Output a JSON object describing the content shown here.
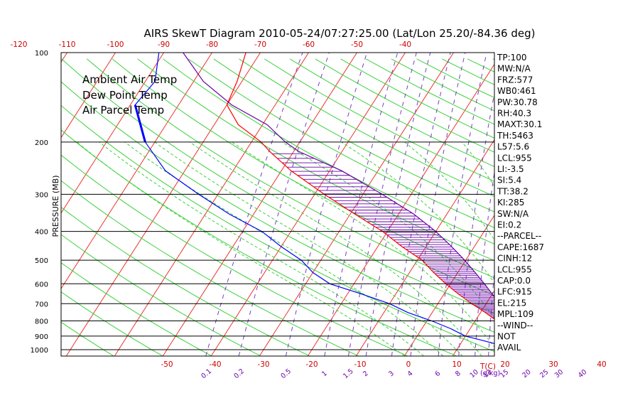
{
  "title": "AIRS SkewT Diagram 2010-05-24/07:27:25.00 (Lat/Lon 25.20/-84.36 deg)",
  "y_axis_label": "PRESSURE (MB)",
  "temp_axis_unit": "T(C)",
  "mixing_ratio_unit": "(g/kg)",
  "legend": [
    {
      "label": "Ambient Air Temp",
      "color": "#ff0000"
    },
    {
      "label": "Dew Point Temp",
      "color": "#0000ff"
    },
    {
      "label": "Air Parcel Temp",
      "color": "#6a00a8"
    }
  ],
  "indices": [
    "TP:100",
    "MW:N/A",
    "FRZ:577",
    "WB0:461",
    "PW:30.78",
    "RH:40.3",
    "MAXT:30.1",
    "TH:5463",
    "L57:5.6",
    "LCL:955",
    "LI:-3.5",
    "SI:5.4",
    "TT:38.2",
    "KI:285",
    "SW:N/A",
    "EI:0.2",
    "--PARCEL--",
    "CAPE:1687",
    "CINH:12",
    "LCL:955",
    "CAP:0.0",
    "LFC:915",
    "EL:215",
    "MPL:109",
    "--WIND--",
    "NOT",
    "AVAIL"
  ],
  "chart_data": {
    "type": "line",
    "title": "AIRS SkewT Diagram 2010-05-24/07:27:25.00 (Lat/Lon 25.20/-84.36 deg)",
    "ylabel": "PRESSURE (MB)",
    "y_scale": "log",
    "y_reversed": true,
    "ylim": [
      1000,
      100
    ],
    "pressure_ticks": [
      100,
      200,
      300,
      400,
      500,
      600,
      700,
      800,
      900,
      1000
    ],
    "top_temp_ticks": [
      -120,
      -110,
      -100,
      -90,
      -80,
      -70,
      -60,
      -50,
      -40
    ],
    "bottom_temp_ticks": [
      -50,
      -40,
      -30,
      -20,
      -10,
      0,
      10,
      20,
      30,
      40
    ],
    "mixing_ratio_ticks": [
      "0.1",
      "0.2",
      "0.5",
      "1",
      "1.5",
      "2",
      "3",
      "4",
      "6",
      "8",
      "10",
      "12",
      "15",
      "20",
      "25",
      "30",
      "40"
    ],
    "series": [
      {
        "name": "Ambient Air Temp",
        "color": "#ff0000",
        "points": [
          [
            1000,
            25
          ],
          [
            970,
            22
          ],
          [
            930,
            20.5
          ],
          [
            900,
            19
          ],
          [
            870,
            17.5
          ],
          [
            850,
            17
          ],
          [
            800,
            14.5
          ],
          [
            750,
            11
          ],
          [
            700,
            7
          ],
          [
            650,
            3
          ],
          [
            600,
            -1
          ],
          [
            550,
            -5
          ],
          [
            500,
            -9
          ],
          [
            450,
            -15
          ],
          [
            400,
            -21
          ],
          [
            350,
            -29
          ],
          [
            300,
            -38
          ],
          [
            250,
            -48
          ],
          [
            215,
            -55
          ],
          [
            200,
            -58
          ],
          [
            175,
            -65
          ],
          [
            150,
            -70
          ],
          [
            125,
            -71
          ],
          [
            100,
            -73
          ]
        ]
      },
      {
        "name": "Dew Point Temp",
        "color": "#0000ff",
        "points": [
          [
            1000,
            21
          ],
          [
            970,
            19
          ],
          [
            930,
            14
          ],
          [
            900,
            10
          ],
          [
            850,
            6
          ],
          [
            800,
            1
          ],
          [
            750,
            -5
          ],
          [
            700,
            -10
          ],
          [
            650,
            -17
          ],
          [
            600,
            -25
          ],
          [
            550,
            -30
          ],
          [
            500,
            -34
          ],
          [
            450,
            -40
          ],
          [
            400,
            -46
          ],
          [
            350,
            -55
          ],
          [
            300,
            -64
          ],
          [
            250,
            -74
          ],
          [
            200,
            -82
          ],
          [
            150,
            -89
          ],
          [
            125,
            -88
          ],
          [
            100,
            -91
          ]
        ]
      },
      {
        "name": "Air Parcel Temp",
        "color": "#6a00a8",
        "points": [
          [
            1000,
            25
          ],
          [
            955,
            21.5
          ],
          [
            915,
            21
          ],
          [
            850,
            19.3
          ],
          [
            800,
            17.5
          ],
          [
            750,
            15.3
          ],
          [
            700,
            12.8
          ],
          [
            650,
            10
          ],
          [
            600,
            7
          ],
          [
            550,
            3.6
          ],
          [
            500,
            -0.2
          ],
          [
            450,
            -4.7
          ],
          [
            400,
            -10
          ],
          [
            350,
            -16.8
          ],
          [
            300,
            -26
          ],
          [
            250,
            -37.5
          ],
          [
            215,
            -49
          ],
          [
            200,
            -53
          ],
          [
            175,
            -59
          ],
          [
            150,
            -69
          ],
          [
            125,
            -78
          ],
          [
            100,
            -86
          ]
        ]
      }
    ]
  }
}
